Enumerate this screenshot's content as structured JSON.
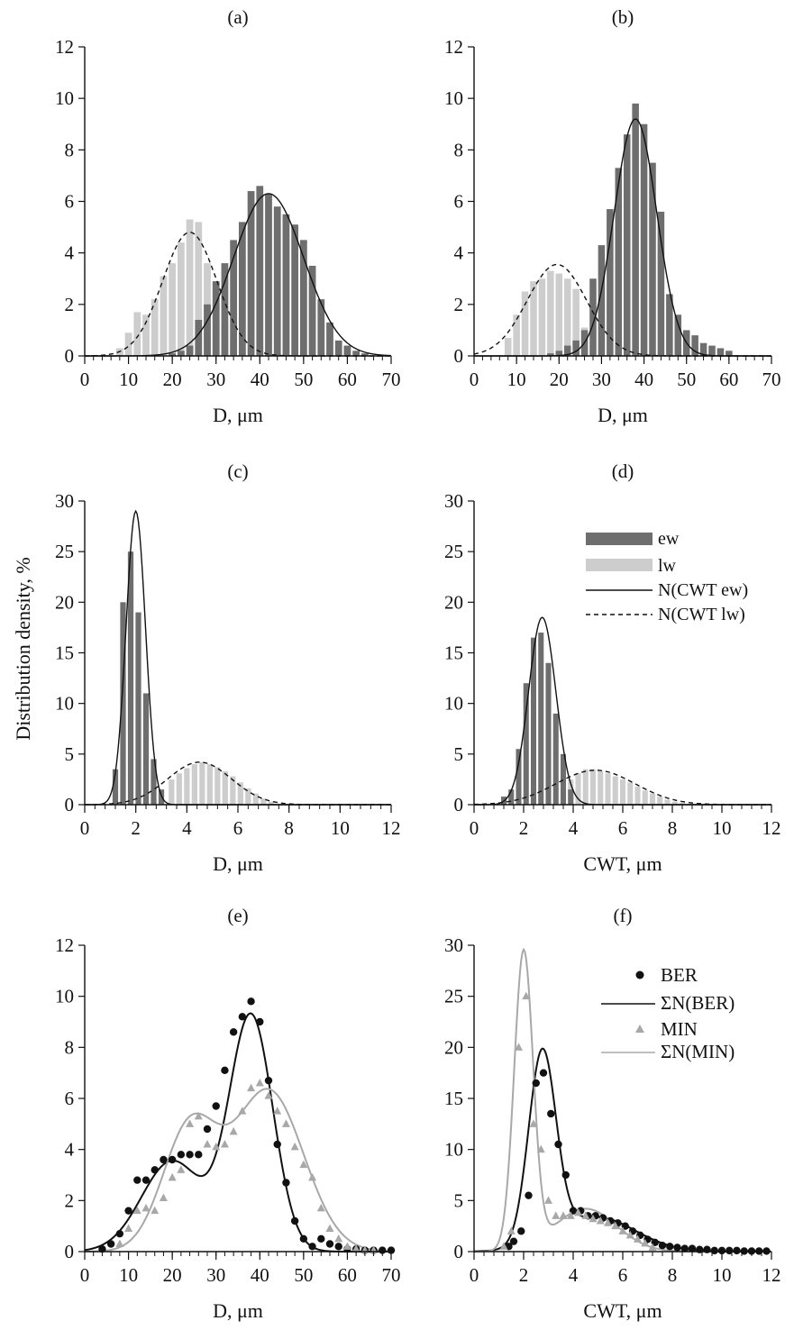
{
  "ylabel": "Distribution density, %",
  "legend_top": [
    "ew",
    "lw",
    "N(CWT ew)",
    "N(CWT lw)"
  ],
  "legend_bottom": [
    "BER",
    "ΣN(BER)",
    "MIN",
    "ΣN(MIN)"
  ],
  "colors": {
    "ew": "#6e6e6e",
    "lw": "#cdcdcd",
    "ber": "#111111",
    "min": "#a8a8a8"
  },
  "chart_data": [
    {
      "type": "bar",
      "panel": "a",
      "title": "(a)",
      "xlabel": "D, μm",
      "xlim": [
        0,
        70
      ],
      "ylim": [
        0,
        12
      ],
      "xticks": [
        0,
        10,
        20,
        30,
        40,
        50,
        60,
        70
      ],
      "yticks": [
        0,
        2,
        4,
        6,
        8,
        10,
        12
      ],
      "bin_width": 1.6,
      "series": [
        {
          "name": "lw",
          "x": [
            8,
            10,
            12,
            14,
            16,
            18,
            20,
            22,
            24,
            26,
            28,
            30,
            32,
            34,
            36
          ],
          "values": [
            0.3,
            0.9,
            1.7,
            1.6,
            2.2,
            3.1,
            3.6,
            4.4,
            5.3,
            5.2,
            3.6,
            2.0,
            1.2,
            0.6,
            0.3
          ]
        },
        {
          "name": "ew",
          "x": [
            20,
            22,
            24,
            26,
            28,
            30,
            32,
            34,
            36,
            38,
            40,
            42,
            44,
            46,
            48,
            50,
            52,
            54,
            56,
            58,
            60,
            62,
            64
          ],
          "values": [
            0.1,
            0.2,
            0.4,
            1.4,
            2.0,
            2.9,
            3.6,
            4.5,
            5.2,
            6.4,
            6.6,
            6.3,
            5.8,
            5.5,
            5.1,
            4.5,
            3.5,
            2.2,
            1.3,
            0.6,
            0.4,
            0.2,
            0.1
          ]
        }
      ],
      "curves": [
        {
          "name": "N(CWT lw)",
          "style": "dashed",
          "mean": 24,
          "sd": 6.2,
          "peak": 4.8
        },
        {
          "name": "N(CWT ew)",
          "style": "solid",
          "mean": 42,
          "sd": 8,
          "peak": 6.3
        }
      ]
    },
    {
      "type": "bar",
      "panel": "b",
      "title": "(b)",
      "xlabel": "D, μm",
      "xlim": [
        0,
        70
      ],
      "ylim": [
        0,
        12
      ],
      "xticks": [
        0,
        10,
        20,
        30,
        40,
        50,
        60,
        70
      ],
      "yticks": [
        0,
        2,
        4,
        6,
        8,
        10,
        12
      ],
      "bin_width": 1.6,
      "series": [
        {
          "name": "lw",
          "x": [
            8,
            10,
            12,
            14,
            16,
            18,
            20,
            22,
            24,
            26
          ],
          "values": [
            0.7,
            1.6,
            2.5,
            2.9,
            3.0,
            3.3,
            3.2,
            3.0,
            2.6,
            1.1
          ]
        },
        {
          "name": "ew",
          "x": [
            18,
            20,
            22,
            24,
            26,
            28,
            30,
            32,
            34,
            36,
            38,
            40,
            42,
            44,
            46,
            48,
            50,
            52,
            54,
            56,
            58,
            60
          ],
          "values": [
            0.1,
            0.2,
            0.4,
            0.6,
            1.0,
            3.0,
            4.3,
            5.7,
            7.3,
            8.6,
            9.8,
            9.0,
            7.5,
            5.6,
            2.4,
            1.6,
            1.0,
            0.8,
            0.5,
            0.4,
            0.3,
            0.2
          ]
        }
      ],
      "curves": [
        {
          "name": "N(CWT lw)",
          "style": "dashed",
          "mean": 19.5,
          "sd": 7,
          "peak": 3.55
        },
        {
          "name": "N(CWT ew)",
          "style": "solid",
          "mean": 38,
          "sd": 5,
          "peak": 9.2
        }
      ]
    },
    {
      "type": "bar",
      "panel": "c",
      "title": "(c)",
      "xlabel": "D, μm",
      "xlim": [
        0,
        12
      ],
      "ylim": [
        0,
        30
      ],
      "xticks": [
        0,
        2,
        4,
        6,
        8,
        10,
        12
      ],
      "yticks": [
        0,
        5,
        10,
        15,
        20,
        25,
        30
      ],
      "bin_width": 0.22,
      "series": [
        {
          "name": "lw",
          "x": [
            3.4,
            3.7,
            4.0,
            4.3,
            4.6,
            4.9,
            5.2,
            5.5,
            5.8,
            6.1,
            6.4,
            6.7,
            7.0,
            7.3
          ],
          "values": [
            2.5,
            3.1,
            3.6,
            4.0,
            4.2,
            4.0,
            3.7,
            3.3,
            2.8,
            2.2,
            1.6,
            1.1,
            0.6,
            0.3
          ]
        },
        {
          "name": "ew",
          "x": [
            1.2,
            1.5,
            1.8,
            2.1,
            2.4,
            2.7,
            3.0
          ],
          "values": [
            3.5,
            20,
            25,
            19,
            11,
            4.5,
            1.5
          ]
        }
      ],
      "curves": [
        {
          "name": "N(CWT ew)",
          "style": "solid",
          "mean": 2.0,
          "sd": 0.38,
          "peak": 29
        },
        {
          "name": "N(CWT lw)",
          "style": "dashed",
          "mean": 4.5,
          "sd": 1.25,
          "peak": 4.2
        }
      ]
    },
    {
      "type": "bar",
      "panel": "d",
      "title": "(d)",
      "xlabel": "CWT, μm",
      "xlim": [
        0,
        12
      ],
      "ylim": [
        0,
        30
      ],
      "xticks": [
        0,
        2,
        4,
        6,
        8,
        10,
        12
      ],
      "yticks": [
        0,
        5,
        10,
        15,
        20,
        25,
        30
      ],
      "bin_width": 0.22,
      "series": [
        {
          "name": "lw",
          "x": [
            3.6,
            3.9,
            4.2,
            4.5,
            4.8,
            5.1,
            5.4,
            5.7,
            6.0,
            6.3,
            6.6,
            6.9,
            7.2,
            7.5,
            7.8,
            8.1,
            8.4,
            8.7
          ],
          "values": [
            1.6,
            2.5,
            3.1,
            3.5,
            3.5,
            3.3,
            3.1,
            2.8,
            2.5,
            2.2,
            1.8,
            1.4,
            1.1,
            0.8,
            0.5,
            0.3,
            0.2,
            0.1
          ]
        },
        {
          "name": "ew",
          "x": [
            1.2,
            1.5,
            1.8,
            2.1,
            2.4,
            2.7,
            3.0,
            3.3,
            3.6,
            3.9
          ],
          "values": [
            0.8,
            1.5,
            5.5,
            12,
            16.5,
            17,
            14,
            9,
            5,
            1.5
          ]
        }
      ],
      "curves": [
        {
          "name": "N(CWT ew)",
          "style": "solid",
          "mean": 2.75,
          "sd": 0.55,
          "peak": 18.5
        },
        {
          "name": "N(CWT lw)",
          "style": "dashed",
          "mean": 4.9,
          "sd": 1.6,
          "peak": 3.4
        }
      ]
    },
    {
      "type": "scatter",
      "panel": "e",
      "title": "(e)",
      "xlabel": "D, μm",
      "xlim": [
        0,
        70
      ],
      "ylim": [
        0,
        12
      ],
      "xticks": [
        0,
        10,
        20,
        30,
        40,
        50,
        60,
        70
      ],
      "yticks": [
        0,
        2,
        4,
        6,
        8,
        10,
        12
      ],
      "series": [
        {
          "name": "BER",
          "marker": "circle",
          "x": [
            4,
            6,
            8,
            10,
            12,
            14,
            16,
            18,
            20,
            22,
            24,
            26,
            28,
            30,
            32,
            34,
            36,
            38,
            40,
            42,
            44,
            46,
            48,
            50,
            52,
            54,
            56,
            58,
            60,
            62,
            64,
            66,
            68,
            70
          ],
          "values": [
            0.1,
            0.3,
            0.7,
            1.6,
            2.8,
            2.8,
            3.2,
            3.6,
            3.6,
            3.8,
            3.8,
            3.8,
            4.8,
            5.7,
            7.1,
            8.6,
            9.2,
            9.8,
            9.0,
            6.7,
            4.2,
            2.7,
            1.2,
            0.5,
            0.2,
            0.5,
            0.3,
            0.2,
            0.1,
            0.1,
            0.05,
            0.05,
            0.05,
            0.05
          ]
        },
        {
          "name": "MIN",
          "marker": "triangle",
          "x": [
            8,
            10,
            12,
            14,
            16,
            18,
            20,
            22,
            24,
            26,
            28,
            30,
            32,
            34,
            36,
            38,
            40,
            42,
            44,
            46,
            48,
            50,
            52,
            54,
            56,
            58,
            60,
            62,
            64,
            66
          ],
          "values": [
            0.3,
            0.9,
            1.6,
            1.7,
            1.6,
            2.1,
            2.9,
            3.2,
            5.0,
            5.3,
            4.2,
            4.1,
            4.2,
            4.7,
            5.5,
            6.4,
            6.6,
            6.1,
            5.5,
            5.0,
            4.1,
            3.4,
            2.9,
            1.7,
            0.9,
            0.5,
            0.2,
            0.1,
            0.05,
            0.05
          ]
        }
      ],
      "curves": [
        {
          "name": "ΣN(BER)",
          "components": [
            {
              "mean": 20,
              "sd": 7,
              "peak": 3.55
            },
            {
              "mean": 38,
              "sd": 5,
              "peak": 9.2
            }
          ]
        },
        {
          "name": "ΣN(MIN)",
          "components": [
            {
              "mean": 24,
              "sd": 6.2,
              "peak": 4.8
            },
            {
              "mean": 42,
              "sd": 8,
              "peak": 6.3
            }
          ]
        }
      ]
    },
    {
      "type": "scatter",
      "panel": "f",
      "title": "(f)",
      "xlabel": "CWT, μm",
      "xlim": [
        0,
        12
      ],
      "ylim": [
        0,
        30
      ],
      "xticks": [
        0,
        2,
        4,
        6,
        8,
        10,
        12
      ],
      "yticks": [
        0,
        5,
        10,
        15,
        20,
        25,
        30
      ],
      "series": [
        {
          "name": "BER",
          "marker": "circle",
          "x": [
            1.4,
            1.6,
            1.9,
            2.2,
            2.5,
            2.8,
            3.1,
            3.4,
            3.7,
            4.0,
            4.3,
            4.6,
            4.9,
            5.2,
            5.5,
            5.8,
            6.1,
            6.4,
            6.7,
            7.0,
            7.3,
            7.6,
            7.9,
            8.2,
            8.5,
            8.8,
            9.1,
            9.4,
            9.7,
            10.0,
            10.3,
            10.6,
            10.9,
            11.2,
            11.5,
            11.8
          ],
          "values": [
            0.5,
            1.0,
            2.0,
            5.5,
            16.5,
            17.5,
            13.5,
            10.5,
            7.5,
            4.0,
            4.0,
            3.5,
            3.5,
            3.3,
            3.0,
            2.8,
            2.5,
            2.0,
            1.6,
            1.2,
            0.9,
            0.6,
            0.5,
            0.4,
            0.3,
            0.3,
            0.2,
            0.2,
            0.1,
            0.1,
            0.1,
            0.1,
            0.05,
            0.05,
            0.05,
            0.05
          ]
        },
        {
          "name": "MIN",
          "marker": "triangle",
          "x": [
            1.2,
            1.5,
            1.8,
            2.1,
            2.4,
            2.7,
            3.0,
            3.3,
            3.6,
            3.9,
            4.2,
            4.5,
            4.8,
            5.1,
            5.4,
            5.7,
            6.0,
            6.3,
            6.6,
            6.9,
            7.2
          ],
          "values": [
            0.5,
            2.0,
            20,
            25,
            12.5,
            10,
            5,
            3.5,
            3.5,
            3.5,
            3.8,
            3.5,
            3.2,
            3.0,
            2.8,
            2.5,
            2.0,
            1.6,
            1.2,
            0.8,
            0.4
          ]
        }
      ],
      "curves": [
        {
          "name": "ΣN(BER)",
          "components": [
            {
              "mean": 2.75,
              "sd": 0.55,
              "peak": 18.5
            },
            {
              "mean": 4.9,
              "sd": 1.6,
              "peak": 3.4
            }
          ]
        },
        {
          "name": "ΣN(MIN)",
          "components": [
            {
              "mean": 2.0,
              "sd": 0.38,
              "peak": 29
            },
            {
              "mean": 4.5,
              "sd": 1.25,
              "peak": 4.2
            }
          ]
        }
      ]
    }
  ]
}
